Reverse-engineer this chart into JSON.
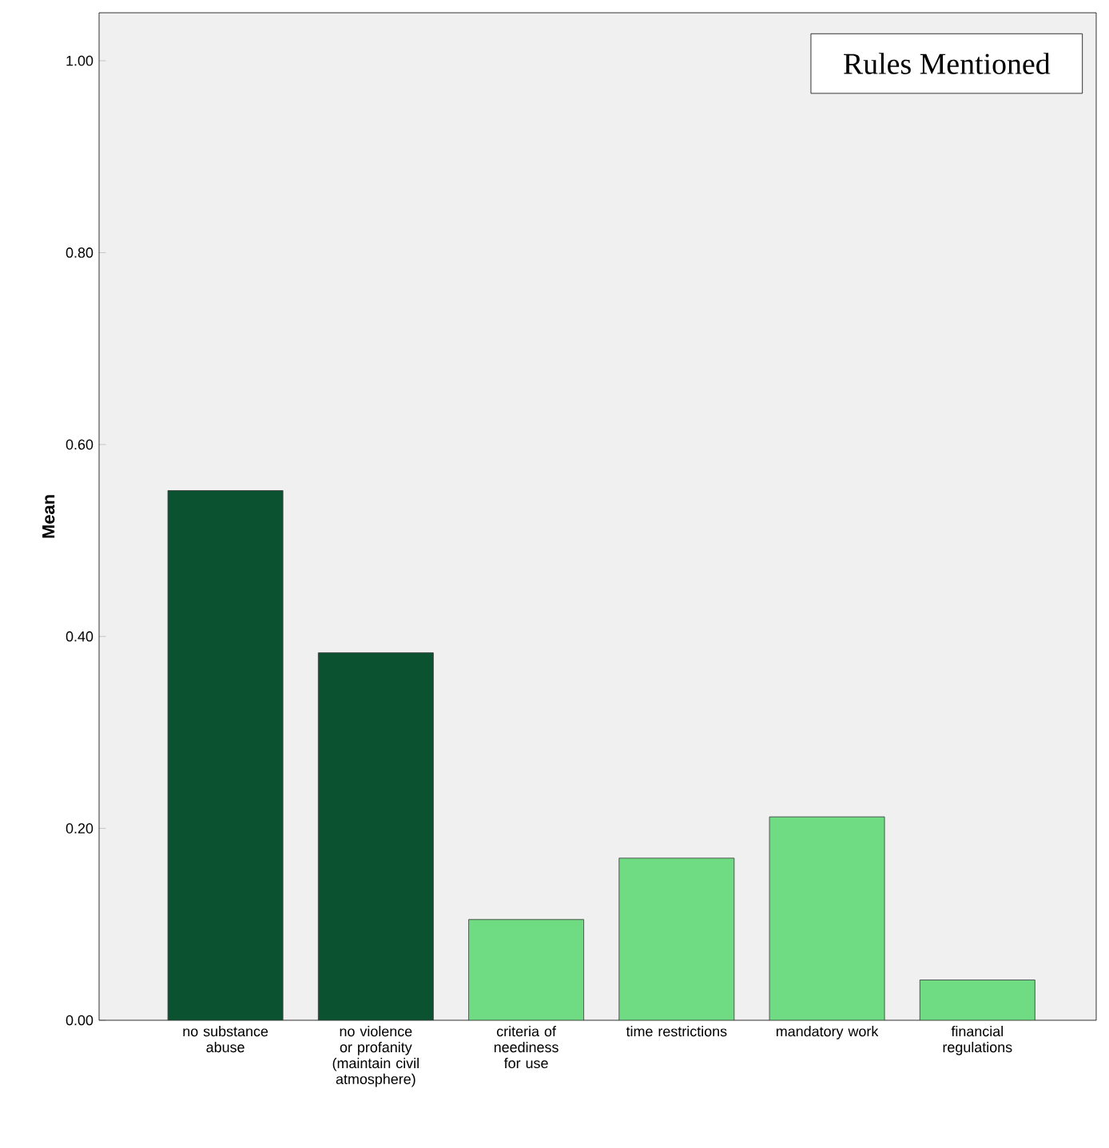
{
  "chart_data": {
    "type": "bar",
    "title": "Rules Mentioned",
    "ylabel": "Mean",
    "categories": [
      "no substance abuse",
      "no violence or profanity (maintain civil atmosphere)",
      "criteria of neediness for use",
      "time restrictions",
      "mandatory work",
      "financial regulations"
    ],
    "values": [
      0.552,
      0.383,
      0.105,
      0.169,
      0.212,
      0.042
    ],
    "colors": [
      "#0b5330",
      "#0b5330",
      "#6fdc84",
      "#6fdc84",
      "#6fdc84",
      "#6fdc84"
    ],
    "ylim": [
      0,
      1.05
    ],
    "yticks": [
      {
        "value": 0,
        "label": "0.00"
      },
      {
        "value": 0.2,
        "label": "0.20"
      },
      {
        "value": 0.4,
        "label": "0.40"
      },
      {
        "value": 0.6,
        "label": "0.60"
      },
      {
        "value": 0.8,
        "label": "0.80"
      },
      {
        "value": 1.0,
        "label": "1.00"
      }
    ],
    "grid": false
  }
}
